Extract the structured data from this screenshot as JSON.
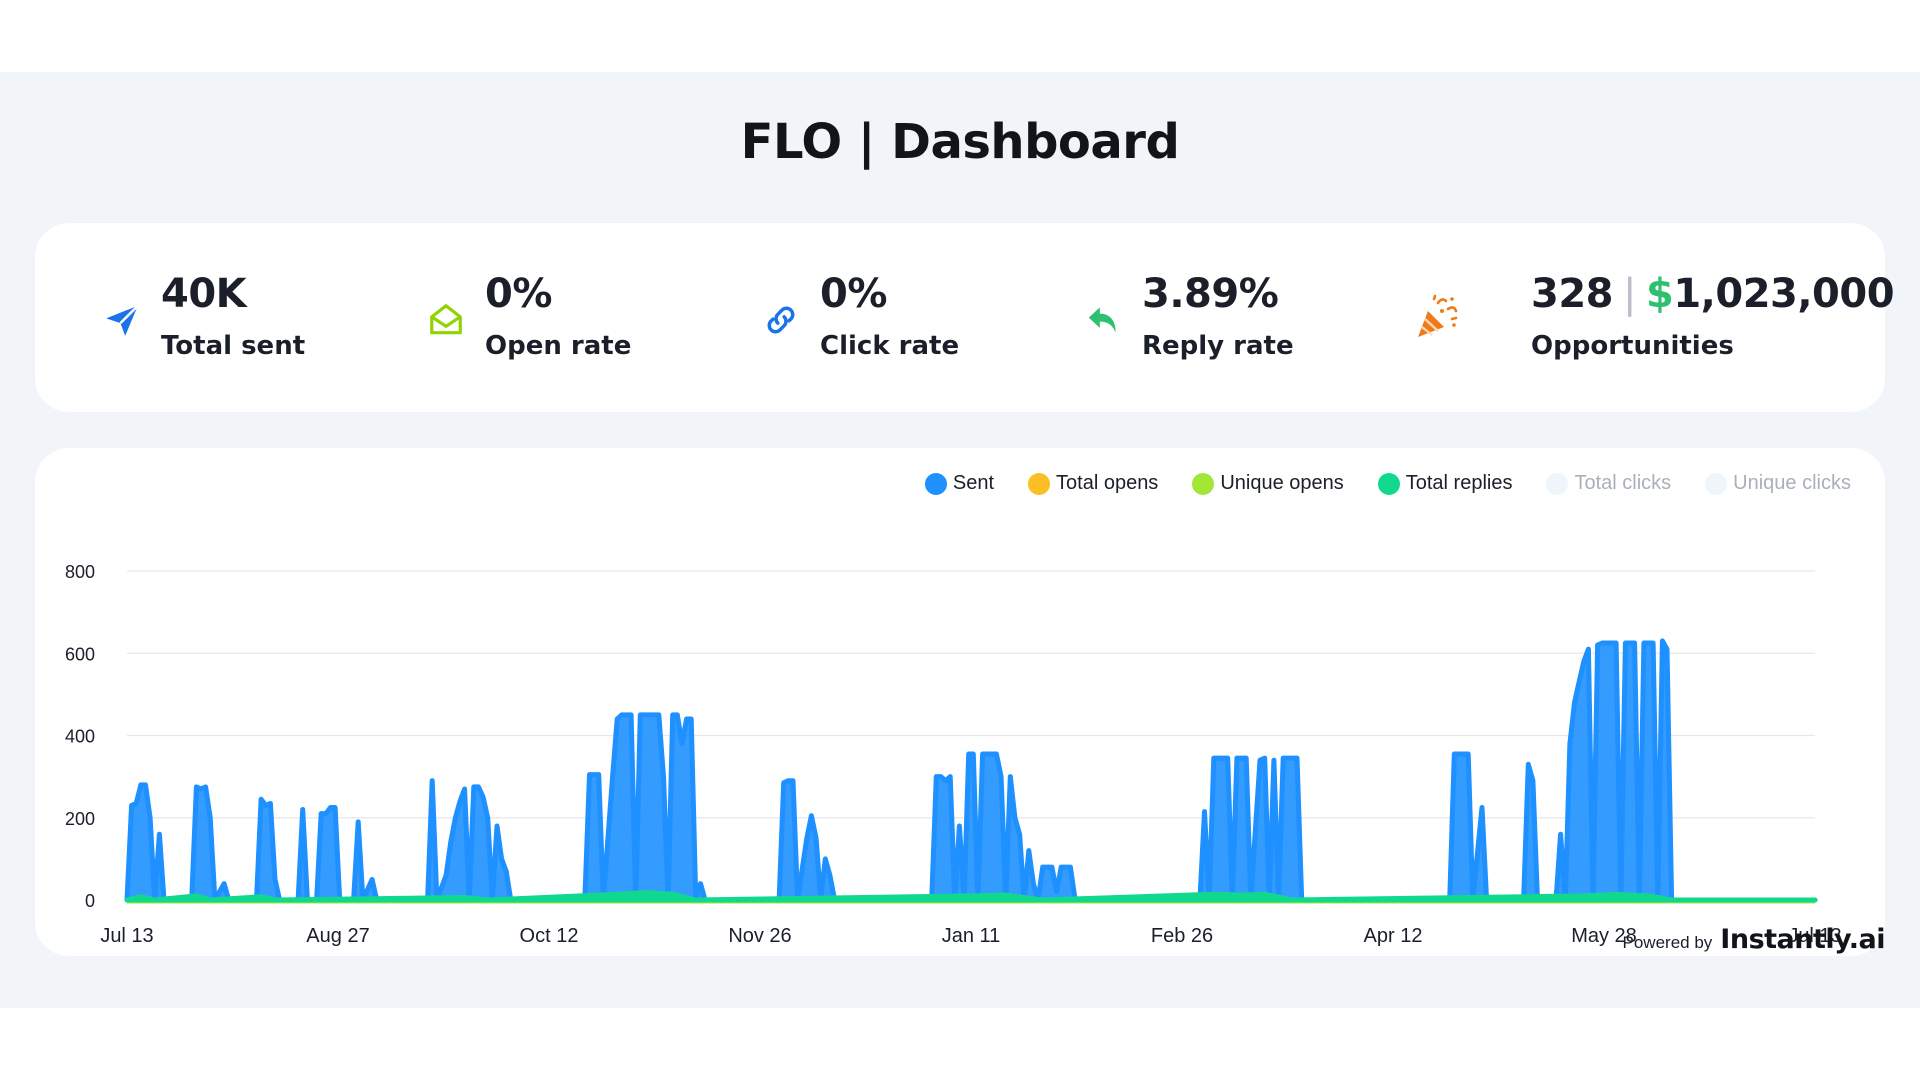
{
  "header": {
    "title": "FLO | Dashboard"
  },
  "stats": [
    {
      "icon": "paper-plane-icon",
      "value": "40K",
      "label": "Total sent",
      "color": "#1a73e8"
    },
    {
      "icon": "open-envelope-icon",
      "value": "0%",
      "label": "Open rate",
      "color": "#8fd400"
    },
    {
      "icon": "link-icon",
      "value": "0%",
      "label": "Click rate",
      "color": "#1a73e8"
    },
    {
      "icon": "reply-arrow-icon",
      "value": "3.89%",
      "label": "Reply rate",
      "color": "#2fbf71"
    },
    {
      "icon": "party-popper-icon",
      "value_count": "328",
      "value_separator": "|",
      "value_currency_symbol": "$",
      "value_amount": "1,023,000",
      "label": "Opportunities",
      "color": "#ef7a1a"
    }
  ],
  "legend": [
    {
      "label": "Sent",
      "color": "#1e90ff",
      "active": true
    },
    {
      "label": "Total opens",
      "color": "#fbbf24",
      "active": true
    },
    {
      "label": "Unique opens",
      "color": "#a3e635",
      "active": true
    },
    {
      "label": "Total replies",
      "color": "#10d98e",
      "active": true
    },
    {
      "label": "Total clicks",
      "color": "#eef6fb",
      "active": false
    },
    {
      "label": "Unique clicks",
      "color": "#eef6fb",
      "active": false
    }
  ],
  "chart_data": {
    "type": "area",
    "y_ticks": [
      0,
      200,
      400,
      600,
      800
    ],
    "ylim": [
      0,
      800
    ],
    "x_tick_labels": [
      "Jul 13",
      "Aug 27",
      "Oct 12",
      "Nov 26",
      "Jan 11",
      "Feb 26",
      "Apr 12",
      "May 28",
      "Jul 13"
    ],
    "x_range_days": [
      0,
      365
    ],
    "grid": true,
    "legend_position": "top-right",
    "series": [
      {
        "name": "Sent",
        "color": "#1e90ff",
        "points": [
          [
            0,
            0
          ],
          [
            1,
            230
          ],
          [
            2,
            235
          ],
          [
            3,
            280
          ],
          [
            4,
            280
          ],
          [
            5,
            200
          ],
          [
            6,
            0
          ],
          [
            7,
            160
          ],
          [
            8,
            0
          ],
          [
            10,
            0
          ],
          [
            11,
            0
          ],
          [
            12,
            0
          ],
          [
            14,
            0
          ],
          [
            15,
            275
          ],
          [
            16,
            270
          ],
          [
            17,
            275
          ],
          [
            18,
            200
          ],
          [
            19,
            0
          ],
          [
            21,
            40
          ],
          [
            22,
            0
          ],
          [
            28,
            0
          ],
          [
            29,
            245
          ],
          [
            30,
            230
          ],
          [
            31,
            235
          ],
          [
            32,
            50
          ],
          [
            33,
            0
          ],
          [
            37,
            0
          ],
          [
            38,
            220
          ],
          [
            39,
            0
          ],
          [
            41,
            0
          ],
          [
            42,
            210
          ],
          [
            43,
            210
          ],
          [
            44,
            225
          ],
          [
            45,
            225
          ],
          [
            46,
            0
          ],
          [
            49,
            0
          ],
          [
            50,
            190
          ],
          [
            51,
            0
          ],
          [
            53,
            50
          ],
          [
            54,
            0
          ],
          [
            65,
            0
          ],
          [
            66,
            290
          ],
          [
            67,
            0
          ],
          [
            69,
            60
          ],
          [
            70,
            140
          ],
          [
            71,
            200
          ],
          [
            72,
            240
          ],
          [
            73,
            270
          ],
          [
            74,
            0
          ],
          [
            75,
            275
          ],
          [
            76,
            275
          ],
          [
            77,
            250
          ],
          [
            78,
            200
          ],
          [
            79,
            0
          ],
          [
            80,
            180
          ],
          [
            81,
            100
          ],
          [
            82,
            70
          ],
          [
            83,
            0
          ],
          [
            99,
            0
          ],
          [
            100,
            305
          ],
          [
            101,
            305
          ],
          [
            102,
            305
          ],
          [
            103,
            0
          ],
          [
            105,
            300
          ],
          [
            106,
            440
          ],
          [
            107,
            450
          ],
          [
            108,
            450
          ],
          [
            109,
            450
          ],
          [
            110,
            0
          ],
          [
            111,
            450
          ],
          [
            112,
            450
          ],
          [
            113,
            450
          ],
          [
            114,
            450
          ],
          [
            115,
            450
          ],
          [
            116,
            300
          ],
          [
            117,
            0
          ],
          [
            118,
            450
          ],
          [
            119,
            450
          ],
          [
            120,
            380
          ],
          [
            121,
            440
          ],
          [
            122,
            440
          ],
          [
            123,
            0
          ],
          [
            124,
            40
          ],
          [
            125,
            0
          ],
          [
            141,
            0
          ],
          [
            142,
            285
          ],
          [
            143,
            290
          ],
          [
            144,
            290
          ],
          [
            145,
            0
          ],
          [
            147,
            150
          ],
          [
            148,
            205
          ],
          [
            149,
            150
          ],
          [
            150,
            0
          ],
          [
            151,
            100
          ],
          [
            152,
            60
          ],
          [
            153,
            0
          ],
          [
            174,
            0
          ],
          [
            175,
            300
          ],
          [
            176,
            300
          ],
          [
            177,
            290
          ],
          [
            178,
            300
          ],
          [
            179,
            0
          ],
          [
            180,
            180
          ],
          [
            181,
            0
          ],
          [
            182,
            355
          ],
          [
            183,
            355
          ],
          [
            184,
            0
          ],
          [
            185,
            355
          ],
          [
            186,
            355
          ],
          [
            187,
            355
          ],
          [
            188,
            355
          ],
          [
            189,
            300
          ],
          [
            190,
            0
          ],
          [
            191,
            300
          ],
          [
            192,
            200
          ],
          [
            193,
            160
          ],
          [
            194,
            0
          ],
          [
            195,
            120
          ],
          [
            196,
            40
          ],
          [
            197,
            0
          ],
          [
            198,
            80
          ],
          [
            199,
            80
          ],
          [
            200,
            80
          ],
          [
            201,
            20
          ],
          [
            202,
            80
          ],
          [
            203,
            80
          ],
          [
            204,
            80
          ],
          [
            205,
            0
          ],
          [
            232,
            0
          ],
          [
            233,
            215
          ],
          [
            234,
            0
          ],
          [
            235,
            345
          ],
          [
            236,
            345
          ],
          [
            237,
            345
          ],
          [
            238,
            345
          ],
          [
            239,
            0
          ],
          [
            240,
            345
          ],
          [
            241,
            345
          ],
          [
            242,
            345
          ],
          [
            243,
            0
          ],
          [
            245,
            340
          ],
          [
            246,
            345
          ],
          [
            247,
            0
          ],
          [
            248,
            340
          ],
          [
            249,
            0
          ],
          [
            250,
            345
          ],
          [
            251,
            345
          ],
          [
            252,
            345
          ],
          [
            253,
            345
          ],
          [
            254,
            0
          ],
          [
            286,
            0
          ],
          [
            287,
            355
          ],
          [
            288,
            355
          ],
          [
            289,
            355
          ],
          [
            290,
            355
          ],
          [
            291,
            0
          ],
          [
            293,
            225
          ],
          [
            294,
            0
          ],
          [
            302,
            0
          ],
          [
            303,
            330
          ],
          [
            304,
            290
          ],
          [
            305,
            0
          ],
          [
            309,
            0
          ],
          [
            310,
            160
          ],
          [
            311,
            0
          ],
          [
            312,
            380
          ],
          [
            313,
            480
          ],
          [
            314,
            530
          ],
          [
            315,
            580
          ],
          [
            316,
            610
          ],
          [
            317,
            0
          ],
          [
            318,
            620
          ],
          [
            319,
            625
          ],
          [
            320,
            625
          ],
          [
            321,
            625
          ],
          [
            322,
            625
          ],
          [
            323,
            0
          ],
          [
            324,
            625
          ],
          [
            325,
            625
          ],
          [
            326,
            625
          ],
          [
            327,
            0
          ],
          [
            328,
            625
          ],
          [
            329,
            625
          ],
          [
            330,
            625
          ],
          [
            331,
            0
          ],
          [
            332,
            630
          ],
          [
            333,
            610
          ],
          [
            334,
            0
          ],
          [
            365,
            0
          ]
        ]
      },
      {
        "name": "Total opens",
        "color": "#fbbf24",
        "constant": 0
      },
      {
        "name": "Unique opens",
        "color": "#a3e635",
        "constant": 0
      },
      {
        "name": "Total replies",
        "color": "#10d98e",
        "points": [
          [
            0,
            0
          ],
          [
            3,
            8
          ],
          [
            6,
            0
          ],
          [
            15,
            10
          ],
          [
            18,
            0
          ],
          [
            29,
            8
          ],
          [
            32,
            0
          ],
          [
            73,
            6
          ],
          [
            78,
            0
          ],
          [
            106,
            14
          ],
          [
            112,
            18
          ],
          [
            118,
            14
          ],
          [
            123,
            0
          ],
          [
            182,
            10
          ],
          [
            190,
            12
          ],
          [
            198,
            0
          ],
          [
            235,
            14
          ],
          [
            241,
            12
          ],
          [
            246,
            14
          ],
          [
            252,
            0
          ],
          [
            315,
            10
          ],
          [
            322,
            14
          ],
          [
            329,
            10
          ],
          [
            334,
            0
          ],
          [
            365,
            0
          ]
        ]
      }
    ]
  }
}
